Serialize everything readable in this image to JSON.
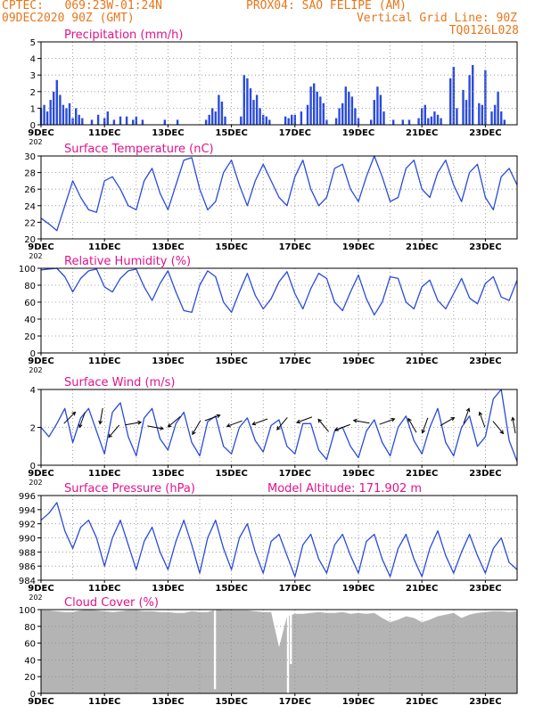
{
  "header": {
    "left_line1": "CPTEC:   069:23W-01:24N",
    "left_line2": "09DEC2020 90Z (GMT)",
    "center_line1": "PROX04: SAO FELIPE (AM)",
    "right_line2": "Vertical Grid Line: 90Z",
    "right_line3": "TQ0126L028"
  },
  "colors": {
    "header": "#e8761a",
    "title": "#e0148c",
    "series": "#2a4bdc",
    "cloud": "#b4b4b4",
    "grid": "#8a8a8a"
  },
  "x_ticks": [
    "9DEC",
    "11DEC",
    "13DEC",
    "15DEC",
    "17DEC",
    "19DEC",
    "21DEC",
    "23DEC"
  ],
  "x_stub": "202",
  "chart_data": [
    {
      "type": "bar",
      "title": "Precipitation (mm/h)",
      "ylim": [
        0,
        5
      ],
      "yticks": [
        0,
        1,
        2,
        3,
        4,
        5
      ],
      "x": [
        9.0,
        9.1,
        9.2,
        9.3,
        9.4,
        9.5,
        9.6,
        9.7,
        9.8,
        9.9,
        10.0,
        10.1,
        10.2,
        10.3,
        10.6,
        10.8,
        11.0,
        11.1,
        11.3,
        11.5,
        11.7,
        11.9,
        12.0,
        12.2,
        12.9,
        13.3,
        14.2,
        14.3,
        14.4,
        14.5,
        14.6,
        14.7,
        14.8,
        15.3,
        15.4,
        15.5,
        15.6,
        15.7,
        15.8,
        15.9,
        16.0,
        16.1,
        16.2,
        16.7,
        16.8,
        16.9,
        17.0,
        17.2,
        17.4,
        17.5,
        17.6,
        17.7,
        17.8,
        17.9,
        18.0,
        18.3,
        18.4,
        18.5,
        18.6,
        18.7,
        18.8,
        18.9,
        19.0,
        19.4,
        19.5,
        19.6,
        19.7,
        19.8,
        20.1,
        20.4,
        20.6,
        20.9,
        21.0,
        21.1,
        21.2,
        21.3,
        21.4,
        21.5,
        21.6,
        21.9,
        22.0,
        22.1,
        22.3,
        22.4,
        22.5,
        22.6,
        22.8,
        22.9,
        23.0,
        23.2,
        23.3,
        23.4,
        23.5,
        23.6
      ],
      "values": [
        1.0,
        1.2,
        0.8,
        1.5,
        2.0,
        2.7,
        1.8,
        1.2,
        1.0,
        1.3,
        0.4,
        1.0,
        0.6,
        0.4,
        0.3,
        0.6,
        0.4,
        0.8,
        0.3,
        0.5,
        0.5,
        0.3,
        0.5,
        0.3,
        0.3,
        0.3,
        0.3,
        0.6,
        1.0,
        0.8,
        1.8,
        1.4,
        0.5,
        0.5,
        3.0,
        2.8,
        2.2,
        1.5,
        1.8,
        1.0,
        0.6,
        0.5,
        0.3,
        0.5,
        0.4,
        0.6,
        0.6,
        0.8,
        1.2,
        2.3,
        2.5,
        2.0,
        1.7,
        1.3,
        0.3,
        0.4,
        1.0,
        1.3,
        2.3,
        2.0,
        1.7,
        1.0,
        0.4,
        0.3,
        1.5,
        2.3,
        1.8,
        0.8,
        0.3,
        0.3,
        0.3,
        0.4,
        1.0,
        1.2,
        0.4,
        0.5,
        0.8,
        0.6,
        0.4,
        2.8,
        3.5,
        1.0,
        2.1,
        1.5,
        3.0,
        3.6,
        1.3,
        1.2,
        3.3,
        0.8,
        1.2,
        2.0,
        0.8,
        0.3
      ]
    },
    {
      "type": "line",
      "title": "Surface Temperature (nC)",
      "ylim": [
        20,
        30
      ],
      "yticks": [
        20,
        22,
        24,
        26,
        28,
        30
      ],
      "x": [
        9.0,
        9.25,
        9.5,
        9.75,
        10.0,
        10.25,
        10.5,
        10.75,
        11.0,
        11.25,
        11.5,
        11.75,
        12.0,
        12.25,
        12.5,
        12.75,
        13.0,
        13.25,
        13.5,
        13.75,
        14.0,
        14.25,
        14.5,
        14.75,
        15.0,
        15.25,
        15.5,
        15.75,
        16.0,
        16.25,
        16.5,
        16.75,
        17.0,
        17.25,
        17.5,
        17.75,
        18.0,
        18.25,
        18.5,
        18.75,
        19.0,
        19.25,
        19.5,
        19.75,
        20.0,
        20.25,
        20.5,
        20.75,
        21.0,
        21.25,
        21.5,
        21.75,
        22.0,
        22.25,
        22.5,
        22.75,
        23.0,
        23.25,
        23.5,
        23.75,
        24.0
      ],
      "values": [
        22.5,
        21.8,
        21.0,
        24.0,
        27.0,
        25.0,
        23.5,
        23.2,
        27.0,
        27.5,
        26.0,
        24.0,
        23.5,
        27.0,
        28.5,
        25.5,
        23.5,
        26.5,
        29.5,
        29.8,
        26.0,
        23.5,
        24.5,
        28.0,
        29.5,
        26.5,
        24.0,
        27.0,
        29.0,
        27.0,
        25.0,
        24.0,
        27.5,
        29.5,
        26.0,
        24.0,
        25.0,
        28.5,
        29.0,
        26.0,
        24.5,
        27.5,
        30.0,
        27.5,
        24.5,
        25.0,
        28.5,
        29.5,
        26.0,
        25.0,
        28.0,
        29.5,
        26.5,
        24.5,
        28.0,
        29.0,
        25.0,
        23.5,
        27.5,
        28.5,
        26.5
      ]
    },
    {
      "type": "line",
      "title": "Relative Humidity (%)",
      "ylim": [
        0,
        100
      ],
      "yticks": [
        0,
        20,
        40,
        60,
        80,
        100
      ],
      "x": [
        9.0,
        9.25,
        9.5,
        9.75,
        10.0,
        10.25,
        10.5,
        10.75,
        11.0,
        11.25,
        11.5,
        11.75,
        12.0,
        12.25,
        12.5,
        12.75,
        13.0,
        13.25,
        13.5,
        13.75,
        14.0,
        14.25,
        14.5,
        14.75,
        15.0,
        15.25,
        15.5,
        15.75,
        16.0,
        16.25,
        16.5,
        16.75,
        17.0,
        17.25,
        17.5,
        17.75,
        18.0,
        18.25,
        18.5,
        18.75,
        19.0,
        19.25,
        19.5,
        19.75,
        20.0,
        20.25,
        20.5,
        20.75,
        21.0,
        21.25,
        21.5,
        21.75,
        22.0,
        22.25,
        22.5,
        22.75,
        23.0,
        23.25,
        23.5,
        23.75,
        24.0
      ],
      "values": [
        98,
        99,
        100,
        90,
        72,
        88,
        97,
        99,
        78,
        72,
        88,
        97,
        99,
        78,
        62,
        82,
        97,
        72,
        50,
        48,
        80,
        97,
        90,
        60,
        48,
        72,
        94,
        68,
        52,
        64,
        84,
        96,
        70,
        52,
        76,
        94,
        88,
        60,
        50,
        72,
        92,
        64,
        45,
        60,
        90,
        88,
        60,
        52,
        78,
        86,
        62,
        52,
        70,
        88,
        65,
        58,
        82,
        90,
        66,
        62,
        86
      ]
    },
    {
      "type": "line",
      "title": "Surface Wind (m/s)",
      "ylim": [
        0,
        4
      ],
      "yticks": [
        0,
        2,
        4
      ],
      "x": [
        9.0,
        9.25,
        9.5,
        9.75,
        10.0,
        10.25,
        10.5,
        10.75,
        11.0,
        11.25,
        11.5,
        11.75,
        12.0,
        12.25,
        12.5,
        12.75,
        13.0,
        13.25,
        13.5,
        13.75,
        14.0,
        14.25,
        14.5,
        14.75,
        15.0,
        15.25,
        15.5,
        15.75,
        16.0,
        16.25,
        16.5,
        16.75,
        17.0,
        17.25,
        17.5,
        17.75,
        18.0,
        18.25,
        18.5,
        18.75,
        19.0,
        19.25,
        19.5,
        19.75,
        20.0,
        20.25,
        20.5,
        20.75,
        21.0,
        21.25,
        21.5,
        21.75,
        22.0,
        22.25,
        22.5,
        22.75,
        23.0,
        23.25,
        23.5,
        23.75,
        24.0
      ],
      "values": [
        2.0,
        1.5,
        2.2,
        3.0,
        1.2,
        2.5,
        3.0,
        1.8,
        0.6,
        2.8,
        3.3,
        1.5,
        0.5,
        2.5,
        3.0,
        1.4,
        0.8,
        2.2,
        2.8,
        1.2,
        0.5,
        2.3,
        2.6,
        1.0,
        0.6,
        2.0,
        2.5,
        1.3,
        0.7,
        2.1,
        2.4,
        1.0,
        0.6,
        2.2,
        2.2,
        0.8,
        0.3,
        1.8,
        2.0,
        1.0,
        0.4,
        1.8,
        2.4,
        1.2,
        0.5,
        2.0,
        2.6,
        1.3,
        0.6,
        2.0,
        3.0,
        1.2,
        0.5,
        2.0,
        2.6,
        1.0,
        1.5,
        3.5,
        4.0,
        1.3,
        0.2
      ]
    },
    {
      "type": "line",
      "title": "Surface Pressure (hPa)",
      "annotation": "Model Altitude: 171.902 m",
      "ylim": [
        984,
        996
      ],
      "yticks": [
        984,
        986,
        988,
        990,
        992,
        994,
        996
      ],
      "x": [
        9.0,
        9.25,
        9.5,
        9.75,
        10.0,
        10.25,
        10.5,
        10.75,
        11.0,
        11.25,
        11.5,
        11.75,
        12.0,
        12.25,
        12.5,
        12.75,
        13.0,
        13.25,
        13.5,
        13.75,
        14.0,
        14.25,
        14.5,
        14.75,
        15.0,
        15.25,
        15.5,
        15.75,
        16.0,
        16.25,
        16.5,
        16.75,
        17.0,
        17.25,
        17.5,
        17.75,
        18.0,
        18.25,
        18.5,
        18.75,
        19.0,
        19.25,
        19.5,
        19.75,
        20.0,
        20.25,
        20.5,
        20.75,
        21.0,
        21.25,
        21.5,
        21.75,
        22.0,
        22.25,
        22.5,
        22.75,
        23.0,
        23.25,
        23.5,
        23.75,
        24.0
      ],
      "values": [
        992.5,
        993.5,
        995.0,
        991.0,
        988.5,
        991.5,
        992.5,
        990.0,
        986.0,
        990.0,
        992.5,
        989.0,
        985.5,
        989.5,
        991.5,
        988.0,
        985.5,
        989.5,
        992.5,
        989.0,
        985.0,
        990.0,
        992.5,
        988.5,
        985.5,
        990.0,
        992.0,
        988.0,
        985.0,
        989.5,
        990.5,
        987.5,
        984.5,
        989.0,
        990.5,
        987.0,
        985.0,
        989.0,
        990.5,
        987.5,
        985.0,
        989.5,
        990.5,
        987.0,
        984.5,
        988.5,
        990.5,
        987.0,
        984.5,
        988.5,
        991.0,
        987.5,
        985.0,
        988.0,
        990.5,
        987.5,
        985.0,
        988.5,
        990.0,
        986.5,
        985.5
      ]
    },
    {
      "type": "area",
      "title": "Cloud Cover (%)",
      "ylim": [
        0,
        100
      ],
      "yticks": [
        0,
        20,
        40,
        60,
        80,
        100
      ],
      "x": [
        9.0,
        9.25,
        9.5,
        9.75,
        10.0,
        10.25,
        10.5,
        10.75,
        11.0,
        11.25,
        11.5,
        11.75,
        12.0,
        12.25,
        12.5,
        12.75,
        13.0,
        13.25,
        13.5,
        13.75,
        14.0,
        14.25,
        14.5,
        14.75,
        15.0,
        15.25,
        15.5,
        15.75,
        16.0,
        16.25,
        16.5,
        16.75,
        17.0,
        17.25,
        17.5,
        17.75,
        18.0,
        18.25,
        18.5,
        18.75,
        19.0,
        19.25,
        19.5,
        19.75,
        20.0,
        20.25,
        20.5,
        20.75,
        21.0,
        21.25,
        21.5,
        21.75,
        22.0,
        22.25,
        22.5,
        22.75,
        23.0,
        23.25,
        23.5,
        23.75,
        24.0
      ],
      "values": [
        99,
        99,
        98,
        97,
        97,
        99,
        100,
        99,
        98,
        97,
        98,
        99,
        99,
        98,
        98,
        97,
        97,
        96,
        96,
        98,
        97,
        97,
        100,
        99,
        99,
        99,
        99,
        98,
        97,
        97,
        55,
        92,
        95,
        95,
        96,
        97,
        96,
        96,
        97,
        95,
        96,
        95,
        96,
        90,
        85,
        88,
        92,
        90,
        85,
        88,
        92,
        94,
        96,
        90,
        94,
        96,
        97,
        98,
        98,
        97,
        98
      ],
      "dips": [
        {
          "x": 14.48,
          "value": 5
        },
        {
          "x": 16.78,
          "value": 0
        },
        {
          "x": 16.87,
          "value": 35
        }
      ]
    }
  ],
  "wind_arrows": [
    {
      "x": 9.9,
      "y": 2.5,
      "dir": 45
    },
    {
      "x": 10.3,
      "y": 2.4,
      "dir": 200
    },
    {
      "x": 10.9,
      "y": 2.6,
      "dir": 190
    },
    {
      "x": 11.3,
      "y": 1.8,
      "dir": 220
    },
    {
      "x": 11.9,
      "y": 2.2,
      "dir": 80
    },
    {
      "x": 12.6,
      "y": 2.0,
      "dir": 100
    },
    {
      "x": 13.2,
      "y": 2.3,
      "dir": 230
    },
    {
      "x": 13.9,
      "y": 2.0,
      "dir": 210
    },
    {
      "x": 14.4,
      "y": 2.5,
      "dir": 70
    },
    {
      "x": 15.1,
      "y": 2.2,
      "dir": 250
    },
    {
      "x": 15.9,
      "y": 2.3,
      "dir": 250
    },
    {
      "x": 16.6,
      "y": 2.2,
      "dir": 220
    },
    {
      "x": 17.3,
      "y": 2.4,
      "dir": 250
    },
    {
      "x": 17.9,
      "y": 2.1,
      "dir": 320
    },
    {
      "x": 18.5,
      "y": 2.0,
      "dir": 250
    },
    {
      "x": 19.1,
      "y": 2.3,
      "dir": 280
    },
    {
      "x": 19.9,
      "y": 2.3,
      "dir": 70
    },
    {
      "x": 20.7,
      "y": 2.1,
      "dir": 330
    },
    {
      "x": 21.1,
      "y": 2.1,
      "dir": 200
    },
    {
      "x": 21.8,
      "y": 2.3,
      "dir": 60
    },
    {
      "x": 22.4,
      "y": 2.6,
      "dir": 20
    },
    {
      "x": 22.9,
      "y": 2.4,
      "dir": 340
    },
    {
      "x": 23.4,
      "y": 2.0,
      "dir": 140
    },
    {
      "x": 23.9,
      "y": 2.1,
      "dir": 350
    }
  ]
}
